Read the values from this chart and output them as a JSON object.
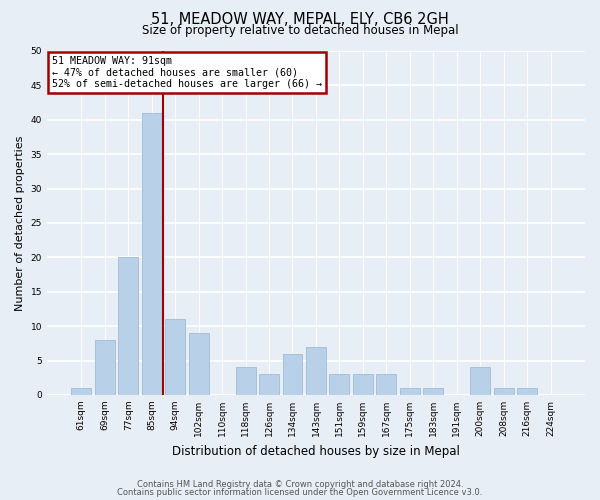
{
  "title": "51, MEADOW WAY, MEPAL, ELY, CB6 2GH",
  "subtitle": "Size of property relative to detached houses in Mepal",
  "xlabel": "Distribution of detached houses by size in Mepal",
  "ylabel": "Number of detached properties",
  "bins": [
    "61sqm",
    "69sqm",
    "77sqm",
    "85sqm",
    "94sqm",
    "102sqm",
    "110sqm",
    "118sqm",
    "126sqm",
    "134sqm",
    "143sqm",
    "151sqm",
    "159sqm",
    "167sqm",
    "175sqm",
    "183sqm",
    "191sqm",
    "200sqm",
    "208sqm",
    "216sqm",
    "224sqm"
  ],
  "values": [
    1,
    8,
    20,
    41,
    11,
    9,
    0,
    4,
    3,
    6,
    7,
    3,
    3,
    3,
    1,
    1,
    0,
    4,
    1,
    1,
    0
  ],
  "bar_color": "#b8d0e8",
  "bar_edgecolor": "#a0bcd8",
  "vline_x": 3.5,
  "vline_color": "#a00000",
  "annotation_title": "51 MEADOW WAY: 91sqm",
  "annotation_line1": "← 47% of detached houses are smaller (60)",
  "annotation_line2": "52% of semi-detached houses are larger (66) →",
  "annotation_box_color": "#ffffff",
  "annotation_box_edgecolor": "#a00000",
  "ylim": [
    0,
    50
  ],
  "yticks": [
    0,
    5,
    10,
    15,
    20,
    25,
    30,
    35,
    40,
    45,
    50
  ],
  "background_color": "#e8eef5",
  "plot_bg_color": "#e8eef5",
  "footer1": "Contains HM Land Registry data © Crown copyright and database right 2024.",
  "footer2": "Contains public sector information licensed under the Open Government Licence v3.0."
}
